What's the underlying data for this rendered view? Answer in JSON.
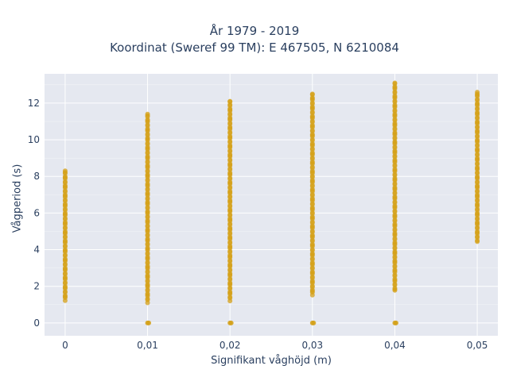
{
  "chart_data": {
    "type": "scatter",
    "title": [
      "År 1979 - 2019",
      "Koordinat (Sweref 99 TM): E 467505, N 6210084"
    ],
    "xlabel": "Signifikant våghöjd (m)",
    "ylabel": "Vågperiod (s)",
    "xlim": [
      -0.0025,
      0.0525
    ],
    "ylim": [
      -0.7,
      13.6
    ],
    "x_ticks": [
      0,
      0.01,
      0.02,
      0.03,
      0.04,
      0.05
    ],
    "x_tick_labels": [
      "0",
      "0,01",
      "0,02",
      "0,03",
      "0,04",
      "0,05"
    ],
    "y_ticks": [
      0,
      2,
      4,
      6,
      8,
      10,
      12
    ],
    "y_tick_labels": [
      "0",
      "2",
      "4",
      "6",
      "8",
      "10",
      "12"
    ],
    "grid": true,
    "color": "#d4a017",
    "series": [
      {
        "columns": [
          {
            "x": 0,
            "y_min": 1.2,
            "y_max": 8.3,
            "zero_point": false
          },
          {
            "x": 0.01,
            "y_min": 1.1,
            "y_max": 11.4,
            "zero_point": true
          },
          {
            "x": 0.02,
            "y_min": 1.2,
            "y_max": 12.1,
            "zero_point": true
          },
          {
            "x": 0.03,
            "y_min": 1.5,
            "y_max": 12.5,
            "zero_point": true
          },
          {
            "x": 0.04,
            "y_min": 1.7,
            "y_max": 13.1,
            "zero_point": true
          },
          {
            "x": 0.05,
            "y_min": 4.4,
            "y_max": 12.6,
            "zero_point": false
          }
        ]
      }
    ]
  },
  "colors": {
    "plot_bg": "#e5e8f0",
    "grid": "#ffffff",
    "marker": "#d4a017"
  }
}
